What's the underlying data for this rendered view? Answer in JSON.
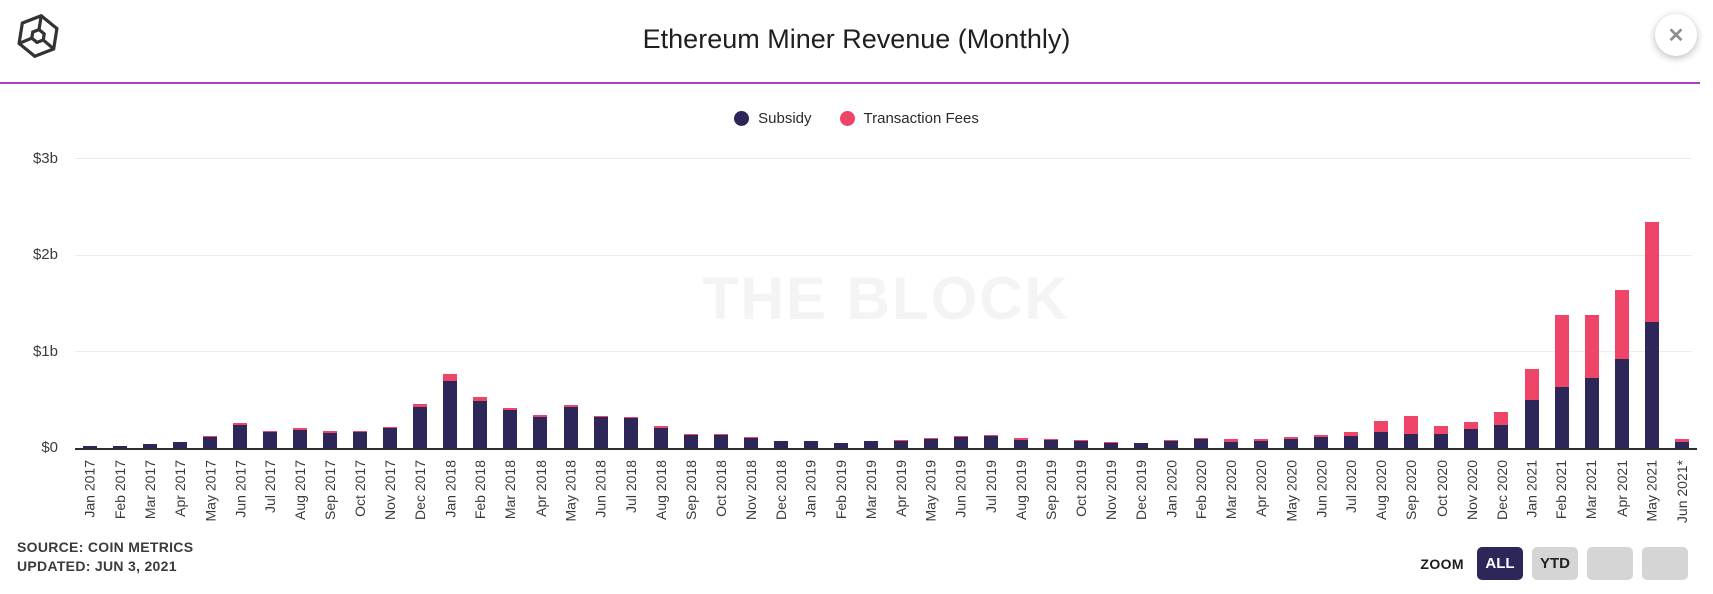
{
  "header": {
    "title": "Ethereum Miner Revenue (Monthly)",
    "close_glyph": "✕"
  },
  "legend": [
    {
      "label": "Subsidy",
      "color": "#2c2659"
    },
    {
      "label": "Transaction Fees",
      "color": "#ee4568"
    }
  ],
  "chart_data": {
    "type": "bar",
    "stacked": true,
    "title": "Ethereum Miner Revenue (Monthly)",
    "unit": "USD billions",
    "grid": true,
    "legend_position": "top",
    "watermark": "THE BLOCK",
    "ylim": [
      0,
      3
    ],
    "ytick_labels": [
      "$0",
      "$1b",
      "$2b",
      "$3b"
    ],
    "categories": [
      "Jan 2017",
      "Feb 2017",
      "Mar 2017",
      "Apr 2017",
      "May 2017",
      "Jun 2017",
      "Jul 2017",
      "Aug 2017",
      "Sep 2017",
      "Oct 2017",
      "Nov 2017",
      "Dec 2017",
      "Jan 2018",
      "Feb 2018",
      "Mar 2018",
      "Apr 2018",
      "May 2018",
      "Jun 2018",
      "Jul 2018",
      "Aug 2018",
      "Sep 2018",
      "Oct 2018",
      "Nov 2018",
      "Dec 2018",
      "Jan 2019",
      "Feb 2019",
      "Mar 2019",
      "Apr 2019",
      "May 2019",
      "Jun 2019",
      "Jul 2019",
      "Aug 2019",
      "Sep 2019",
      "Oct 2019",
      "Nov 2019",
      "Dec 2019",
      "Jan 2020",
      "Feb 2020",
      "Mar 2020",
      "Apr 2020",
      "May 2020",
      "Jun 2020",
      "Jul 2020",
      "Aug 2020",
      "Sep 2020",
      "Oct 2020",
      "Nov 2020",
      "Dec 2020",
      "Jan 2021",
      "Feb 2021",
      "Mar 2021",
      "Apr 2021",
      "May 2021",
      "Jun 2021*"
    ],
    "series": [
      {
        "name": "Subsidy",
        "color": "#2c2659",
        "values": [
          0.02,
          0.02,
          0.04,
          0.06,
          0.11,
          0.24,
          0.17,
          0.19,
          0.16,
          0.17,
          0.21,
          0.42,
          0.69,
          0.49,
          0.39,
          0.32,
          0.43,
          0.32,
          0.31,
          0.21,
          0.14,
          0.14,
          0.1,
          0.07,
          0.07,
          0.05,
          0.07,
          0.07,
          0.09,
          0.11,
          0.12,
          0.08,
          0.08,
          0.075,
          0.055,
          0.048,
          0.07,
          0.095,
          0.065,
          0.075,
          0.095,
          0.11,
          0.125,
          0.17,
          0.15,
          0.15,
          0.195,
          0.24,
          0.5,
          0.63,
          0.73,
          0.92,
          1.31,
          0.065
        ]
      },
      {
        "name": "Transaction Fees",
        "color": "#ee4568",
        "values": [
          0.003,
          0.003,
          0.005,
          0.006,
          0.01,
          0.015,
          0.01,
          0.015,
          0.012,
          0.01,
          0.012,
          0.04,
          0.08,
          0.04,
          0.02,
          0.02,
          0.015,
          0.015,
          0.015,
          0.015,
          0.01,
          0.01,
          0.01,
          0.006,
          0.006,
          0.005,
          0.006,
          0.008,
          0.01,
          0.015,
          0.012,
          0.022,
          0.009,
          0.008,
          0.007,
          0.006,
          0.008,
          0.009,
          0.025,
          0.016,
          0.016,
          0.03,
          0.045,
          0.115,
          0.18,
          0.08,
          0.07,
          0.13,
          0.32,
          0.75,
          0.65,
          0.72,
          1.03,
          0.03
        ]
      }
    ]
  },
  "footer": {
    "source": "SOURCE: COIN METRICS",
    "updated": "UPDATED: JUN 3, 2021"
  },
  "zoom_controls": {
    "label": "ZOOM",
    "buttons": [
      {
        "label": "ALL",
        "active": true
      },
      {
        "label": "YTD",
        "active": false
      },
      {
        "label": "",
        "active": false
      },
      {
        "label": "",
        "active": false
      }
    ]
  },
  "colors": {
    "subsidy": "#2c2659",
    "fees": "#ee4568",
    "divider": "#ad3cc8",
    "gridline": "#ececec",
    "watermark_text": "#f4f4f4"
  }
}
